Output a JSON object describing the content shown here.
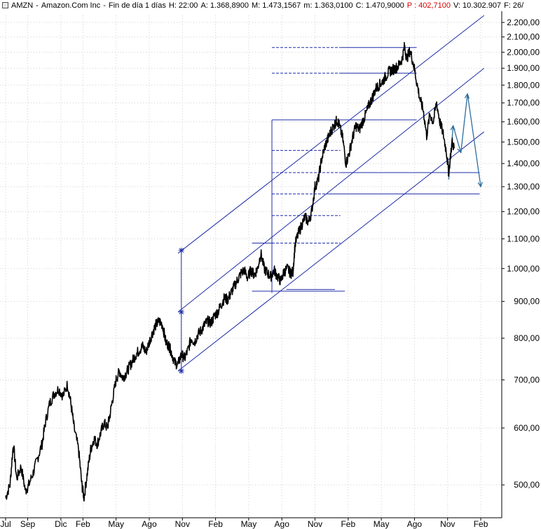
{
  "header": {
    "symbol": "AMZN",
    "name": "Amazon.Com Inc",
    "period": "Fin de día 1 días",
    "h": "H: 22:00",
    "a": "A: 1.368,8900",
    "m": "M: 1.473,1567",
    "mn": "m: 1.363,0100",
    "c": "C: 1.470,9000",
    "p": "P : 402,7100",
    "v": "V: 10.302.907",
    "f": "F: 26/"
  },
  "colors": {
    "price": "#000000",
    "channel": "#1f2ea8",
    "levels": "#1f2ea8",
    "projection": "#2e6e9e",
    "grid": "#cfcfcf",
    "header_p": "#d40000"
  },
  "chart_data": {
    "type": "line",
    "scale": "log",
    "y_range": [
      450,
      2250
    ],
    "y_ticks": [
      {
        "label": "2.200,00",
        "v": 2200
      },
      {
        "label": "2.100,00",
        "v": 2100
      },
      {
        "label": "2.000,00",
        "v": 2000
      },
      {
        "label": "1.900,00",
        "v": 1900
      },
      {
        "label": "1.800,00",
        "v": 1800
      },
      {
        "label": "1.700,00",
        "v": 1700
      },
      {
        "label": "1.600,00",
        "v": 1600
      },
      {
        "label": "1.500,00",
        "v": 1500
      },
      {
        "label": "1.400,00",
        "v": 1400
      },
      {
        "label": "1.300,00",
        "v": 1300
      },
      {
        "label": "1.200,00",
        "v": 1200
      },
      {
        "label": "1.100,00",
        "v": 1100
      },
      {
        "label": "1.000,00",
        "v": 1000
      },
      {
        "label": "900,00",
        "v": 900
      },
      {
        "label": "800,00",
        "v": 800
      },
      {
        "label": "700,00",
        "v": 700
      },
      {
        "label": "600,00",
        "v": 600
      },
      {
        "label": "500,00",
        "v": 500
      }
    ],
    "x_ticks": [
      {
        "label": "Jul",
        "t": 0
      },
      {
        "label": "Sep",
        "t": 2
      },
      {
        "label": "Dic",
        "t": 5
      },
      {
        "label": "Feb",
        "t": 7
      },
      {
        "label": "May",
        "t": 10
      },
      {
        "label": "Ago",
        "t": 13
      },
      {
        "label": "Nov",
        "t": 16
      },
      {
        "label": "Feb",
        "t": 19
      },
      {
        "label": "May",
        "t": 22
      },
      {
        "label": "Ago",
        "t": 25
      },
      {
        "label": "Nov",
        "t": 28
      },
      {
        "label": "Feb",
        "t": 31
      },
      {
        "label": "May",
        "t": 34
      },
      {
        "label": "Ago",
        "t": 37
      },
      {
        "label": "Nov",
        "t": 40
      },
      {
        "label": "Feb",
        "t": 43
      }
    ],
    "series": [
      {
        "price": [
          [
            0.0,
            480
          ],
          [
            0.4,
            500
          ],
          [
            0.7,
            570
          ],
          [
            1.0,
            510
          ],
          [
            1.4,
            530
          ],
          [
            1.8,
            490
          ],
          [
            2.1,
            500
          ],
          [
            2.5,
            520
          ],
          [
            2.9,
            545
          ],
          [
            3.3,
            570
          ],
          [
            3.6,
            610
          ],
          [
            4.0,
            650
          ],
          [
            4.4,
            670
          ],
          [
            4.8,
            680
          ],
          [
            5.2,
            665
          ],
          [
            5.6,
            690
          ],
          [
            5.9,
            650
          ],
          [
            6.2,
            600
          ],
          [
            6.6,
            560
          ],
          [
            6.9,
            500
          ],
          [
            7.1,
            480
          ],
          [
            7.4,
            520
          ],
          [
            7.7,
            560
          ],
          [
            8.0,
            580
          ],
          [
            8.3,
            570
          ],
          [
            8.6,
            590
          ],
          [
            8.9,
            610
          ],
          [
            9.2,
            600
          ],
          [
            9.4,
            620
          ],
          [
            9.7,
            660
          ],
          [
            10.0,
            700
          ],
          [
            10.3,
            720
          ],
          [
            10.6,
            705
          ],
          [
            10.9,
            715
          ],
          [
            11.2,
            730
          ],
          [
            11.5,
            745
          ],
          [
            11.8,
            760
          ],
          [
            12.1,
            770
          ],
          [
            12.4,
            780
          ],
          [
            12.7,
            765
          ],
          [
            13.0,
            790
          ],
          [
            13.3,
            815
          ],
          [
            13.6,
            835
          ],
          [
            13.9,
            845
          ],
          [
            14.2,
            835
          ],
          [
            14.5,
            790
          ],
          [
            14.8,
            780
          ],
          [
            15.0,
            765
          ],
          [
            15.3,
            740
          ],
          [
            15.6,
            735
          ],
          [
            15.9,
            760
          ],
          [
            16.2,
            750
          ],
          [
            16.5,
            770
          ],
          [
            16.8,
            800
          ],
          [
            17.1,
            790
          ],
          [
            17.4,
            810
          ],
          [
            17.7,
            820
          ],
          [
            18.0,
            835
          ],
          [
            18.3,
            845
          ],
          [
            18.6,
            840
          ],
          [
            18.9,
            860
          ],
          [
            19.2,
            870
          ],
          [
            19.5,
            890
          ],
          [
            19.8,
            910
          ],
          [
            20.1,
            905
          ],
          [
            20.4,
            925
          ],
          [
            20.7,
            945
          ],
          [
            21.0,
            965
          ],
          [
            21.3,
            985
          ],
          [
            21.6,
            995
          ],
          [
            21.9,
            970
          ],
          [
            22.2,
            995
          ],
          [
            22.5,
            980
          ],
          [
            22.8,
            1000
          ],
          [
            23.1,
            1050
          ],
          [
            23.4,
            1000
          ],
          [
            23.7,
            985
          ],
          [
            24.0,
            975
          ],
          [
            24.3,
            995
          ],
          [
            24.6,
            975
          ],
          [
            24.9,
            960
          ],
          [
            25.2,
            990
          ],
          [
            25.5,
            1000
          ],
          [
            25.8,
            985
          ],
          [
            26.0,
            990
          ],
          [
            26.2,
            1080
          ],
          [
            26.5,
            1120
          ],
          [
            26.8,
            1150
          ],
          [
            27.1,
            1180
          ],
          [
            27.4,
            1160
          ],
          [
            27.7,
            1200
          ],
          [
            28.0,
            1300
          ],
          [
            28.3,
            1330
          ],
          [
            28.6,
            1420
          ],
          [
            28.9,
            1480
          ],
          [
            29.2,
            1520
          ],
          [
            29.5,
            1560
          ],
          [
            29.8,
            1590
          ],
          [
            30.0,
            1610
          ],
          [
            30.2,
            1580
          ],
          [
            30.5,
            1520
          ],
          [
            30.8,
            1400
          ],
          [
            31.1,
            1450
          ],
          [
            31.4,
            1520
          ],
          [
            31.7,
            1580
          ],
          [
            32.0,
            1560
          ],
          [
            32.3,
            1600
          ],
          [
            32.6,
            1640
          ],
          [
            32.9,
            1690
          ],
          [
            33.2,
            1730
          ],
          [
            33.5,
            1780
          ],
          [
            33.8,
            1800
          ],
          [
            34.1,
            1820
          ],
          [
            34.4,
            1850
          ],
          [
            34.7,
            1880
          ],
          [
            35.0,
            1890
          ],
          [
            35.3,
            1900
          ],
          [
            35.6,
            1920
          ],
          [
            35.9,
            1960
          ],
          [
            36.1,
            2039
          ],
          [
            36.3,
            1960
          ],
          [
            36.6,
            2010
          ],
          [
            36.9,
            1930
          ],
          [
            37.2,
            1820
          ],
          [
            37.5,
            1720
          ],
          [
            37.8,
            1660
          ],
          [
            38.1,
            1530
          ],
          [
            38.4,
            1640
          ],
          [
            38.7,
            1600
          ],
          [
            39.0,
            1700
          ],
          [
            39.3,
            1600
          ],
          [
            39.6,
            1540
          ],
          [
            39.9,
            1450
          ],
          [
            40.1,
            1360
          ],
          [
            40.4,
            1500
          ],
          [
            40.6,
            1470
          ]
        ]
      }
    ],
    "annotations": {
      "channel": [
        {
          "p1": [
            15.6,
            1050
          ],
          "p2": [
            43.3,
            2250
          ]
        },
        {
          "p1": [
            15.6,
            870
          ],
          "p2": [
            43.3,
            1900
          ]
        },
        {
          "p1": [
            15.6,
            720
          ],
          "p2": [
            43.3,
            1550
          ]
        }
      ],
      "vertical_measure": {
        "t": 15.9,
        "v1": 720,
        "v2": 1060
      },
      "vertical_line": {
        "t": 24.1,
        "v1": 925,
        "v2": 1610
      },
      "horizontal_solid": [
        {
          "v": 2030,
          "t1": 30.3,
          "t2": 37.2
        },
        {
          "v": 1870,
          "t1": 30.3,
          "t2": 37.2
        },
        {
          "v": 1610,
          "t1": 24.1,
          "t2": 37.2
        },
        {
          "v": 1360,
          "t1": 30.3,
          "t2": 42.9
        },
        {
          "v": 1270,
          "t1": 29.2,
          "t2": 42.9
        },
        {
          "v": 1085,
          "t1": 22.3,
          "t2": 24.1
        },
        {
          "v": 930,
          "t1": 22.3,
          "t2": 30.7
        },
        {
          "v": 935,
          "t1": 25.4,
          "t2": 29.8
        }
      ],
      "horizontal_dashed": [
        {
          "v": 2030,
          "t1": 24.1,
          "t2": 30.3
        },
        {
          "v": 1870,
          "t1": 24.1,
          "t2": 30.3
        },
        {
          "v": 1460,
          "t1": 24.1,
          "t2": 30.3
        },
        {
          "v": 1360,
          "t1": 24.1,
          "t2": 30.3
        },
        {
          "v": 1270,
          "t1": 24.1,
          "t2": 29.2
        },
        {
          "v": 1185,
          "t1": 24.1,
          "t2": 30.3
        },
        {
          "v": 1085,
          "t1": 24.1,
          "t2": 30.3
        }
      ],
      "projection": [
        [
          40.1,
          1330
        ],
        [
          40.5,
          1580
        ],
        [
          41.2,
          1450
        ],
        [
          41.8,
          1750
        ],
        [
          43.0,
          1300
        ]
      ]
    }
  }
}
